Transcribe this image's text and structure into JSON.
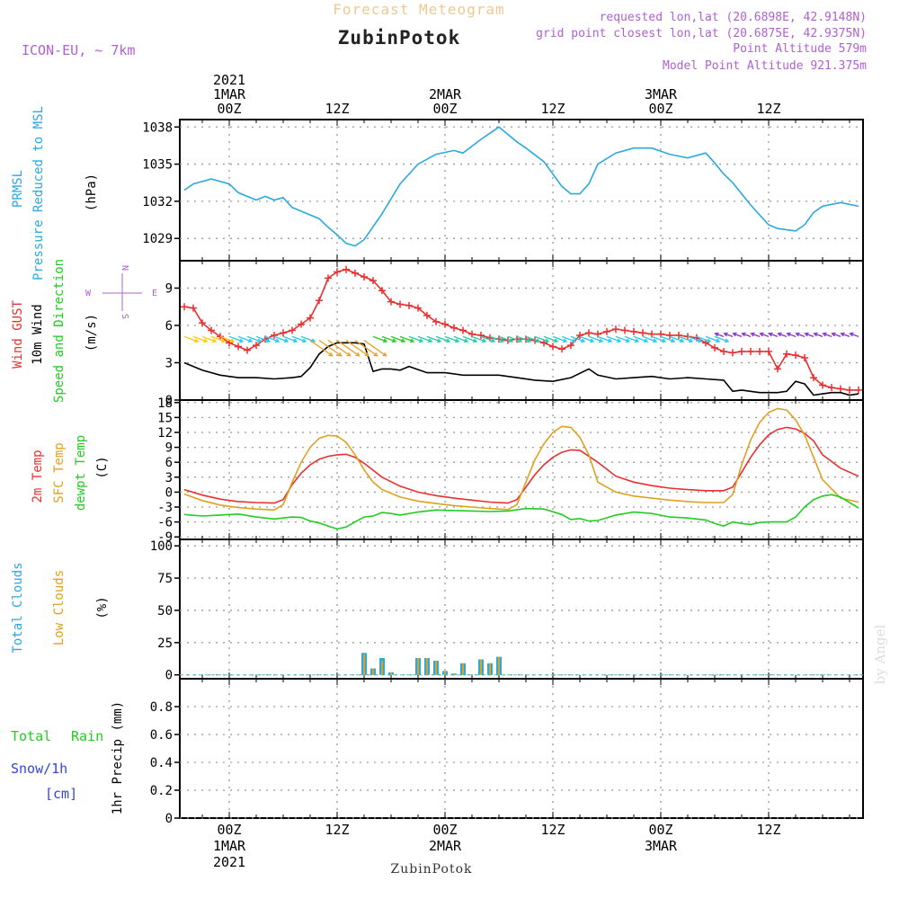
{
  "header": {
    "title": "Forecast Meteogram",
    "station": "ZubinPotok",
    "model": "ICON-EU, ~ 7km",
    "requested": "requested lon,lat (20.6898E, 42.9148N)",
    "closest": "grid point closest lon,lat (20.6875E, 42.9375N)",
    "altitude": "Point Altitude 579m",
    "model_altitude": "Model Point Altitude 921.375m",
    "footer_station": "ZubinPotok",
    "credit": "by Angel"
  },
  "time_axis": {
    "top_labels": [
      {
        "h": 0,
        "lines": [
          "2021",
          "1MAR",
          "00Z"
        ]
      },
      {
        "h": 12,
        "lines": [
          "12Z"
        ]
      },
      {
        "h": 24,
        "lines": [
          "2MAR",
          "00Z"
        ]
      },
      {
        "h": 36,
        "lines": [
          "12Z"
        ]
      },
      {
        "h": 48,
        "lines": [
          "3MAR",
          "00Z"
        ]
      },
      {
        "h": 60,
        "lines": [
          "12Z"
        ]
      }
    ],
    "bottom_labels": [
      {
        "h": 0,
        "lines": [
          "00Z",
          "1MAR",
          "2021"
        ]
      },
      {
        "h": 12,
        "lines": [
          "12Z"
        ]
      },
      {
        "h": 24,
        "lines": [
          "00Z",
          "2MAR"
        ]
      },
      {
        "h": 36,
        "lines": [
          "12Z"
        ]
      },
      {
        "h": 48,
        "lines": [
          "00Z",
          "3MAR"
        ]
      },
      {
        "h": 60,
        "lines": [
          "12Z"
        ]
      }
    ],
    "range_hours": [
      -5.5,
      70.5
    ]
  },
  "chart_data": [
    {
      "type": "line",
      "name": "pressure",
      "labels": [
        "PRMSL",
        "Pressure Reduced to MSL",
        "(hPa)"
      ],
      "ylim": [
        1027.2,
        1038.6
      ],
      "yticks": [
        1029,
        1032,
        1035,
        1038
      ],
      "series": [
        {
          "name": "PRMSL",
          "color": "#2aa8e0",
          "x": [
            -5,
            -4,
            -2,
            0,
            1,
            3,
            4,
            5,
            6,
            7,
            8,
            10,
            11,
            12,
            13,
            14,
            15,
            17,
            19,
            21,
            23,
            25,
            26,
            28,
            30,
            32,
            33,
            35,
            37,
            38,
            39,
            40,
            41,
            43,
            45,
            47,
            49,
            51,
            53,
            54,
            55,
            56,
            58,
            60,
            61,
            63,
            64,
            65,
            66,
            68,
            70
          ],
          "y": [
            1032.9,
            1033.4,
            1033.8,
            1033.4,
            1032.7,
            1032.1,
            1032.4,
            1032.1,
            1032.3,
            1031.5,
            1031.2,
            1030.6,
            1029.9,
            1029.3,
            1028.6,
            1028.4,
            1028.9,
            1031.0,
            1033.4,
            1035.0,
            1035.8,
            1036.1,
            1035.9,
            1037.0,
            1038.0,
            1036.8,
            1036.3,
            1035.2,
            1033.2,
            1032.6,
            1032.6,
            1033.4,
            1035.0,
            1035.9,
            1036.3,
            1036.3,
            1035.8,
            1035.5,
            1035.9,
            1035.1,
            1034.2,
            1033.5,
            1031.7,
            1030.1,
            1029.8,
            1029.6,
            1030.1,
            1031.1,
            1031.6,
            1031.9,
            1031.6
          ]
        }
      ]
    },
    {
      "type": "line",
      "name": "wind",
      "labels": [
        "Wind GUST",
        "10m Wind",
        "Speed and Direction",
        "(m/s)"
      ],
      "compass": {
        "n": "N",
        "e": "E",
        "s": "S",
        "w": "W"
      },
      "ylim": [
        0,
        11.2
      ],
      "yticks": [
        0,
        3,
        6,
        9
      ],
      "series": [
        {
          "name": "Wind GUST",
          "color": "#e83030",
          "marker": "+",
          "x": [
            -5,
            -4,
            -3,
            -2,
            -1,
            0,
            1,
            2,
            3,
            4,
            5,
            6,
            7,
            8,
            9,
            10,
            11,
            12,
            13,
            14,
            15,
            16,
            17,
            18,
            19,
            20,
            21,
            22,
            23,
            24,
            25,
            26,
            27,
            28,
            29,
            30,
            31,
            32,
            33,
            34,
            35,
            36,
            37,
            38,
            39,
            40,
            41,
            42,
            43,
            44,
            45,
            46,
            47,
            48,
            49,
            50,
            51,
            52,
            53,
            54,
            55,
            56,
            57,
            58,
            59,
            60,
            61,
            62,
            63,
            64,
            65,
            66,
            67,
            68,
            69,
            70
          ],
          "y": [
            7.5,
            7.4,
            6.2,
            5.6,
            5.1,
            4.6,
            4.3,
            4.0,
            4.4,
            4.9,
            5.2,
            5.4,
            5.6,
            6.1,
            6.6,
            8.0,
            9.8,
            10.3,
            10.5,
            10.2,
            9.9,
            9.6,
            8.8,
            7.9,
            7.7,
            7.6,
            7.4,
            6.8,
            6.3,
            6.1,
            5.8,
            5.6,
            5.3,
            5.2,
            5.0,
            4.9,
            4.8,
            4.9,
            4.9,
            4.8,
            4.6,
            4.3,
            4.1,
            4.4,
            5.2,
            5.4,
            5.3,
            5.5,
            5.7,
            5.6,
            5.5,
            5.4,
            5.3,
            5.3,
            5.2,
            5.2,
            5.1,
            5.0,
            4.6,
            4.2,
            3.9,
            3.8,
            3.9,
            3.9,
            3.9,
            3.9,
            2.5,
            3.7,
            3.6,
            3.4,
            1.8,
            1.2,
            1.0,
            0.9,
            0.8,
            0.8
          ]
        },
        {
          "name": "10m Wind",
          "color": "#000000",
          "x": [
            -5,
            -3,
            -1,
            1,
            3,
            5,
            7,
            8,
            9,
            10,
            11,
            12,
            13,
            14,
            15,
            16,
            17,
            18,
            19,
            20,
            22,
            24,
            26,
            28,
            30,
            32,
            34,
            36,
            38,
            40,
            41,
            43,
            45,
            47,
            49,
            51,
            53,
            55,
            56,
            57,
            58,
            59,
            60,
            61,
            62,
            63,
            64,
            65,
            66,
            67,
            68,
            69,
            70
          ],
          "y": [
            3.0,
            2.4,
            2.0,
            1.8,
            1.8,
            1.7,
            1.8,
            1.9,
            2.6,
            3.7,
            4.3,
            4.6,
            4.6,
            4.6,
            4.5,
            2.3,
            2.5,
            2.5,
            2.4,
            2.7,
            2.2,
            2.2,
            2.0,
            2.0,
            2.0,
            1.8,
            1.6,
            1.5,
            1.8,
            2.5,
            2.0,
            1.7,
            1.8,
            1.9,
            1.7,
            1.8,
            1.7,
            1.6,
            0.7,
            0.8,
            0.7,
            0.6,
            0.6,
            0.6,
            0.7,
            1.5,
            1.3,
            0.4,
            0.5,
            0.6,
            0.6,
            0.4,
            0.5
          ]
        }
      ]
    },
    {
      "type": "line",
      "name": "temperature",
      "labels": [
        "2m Temp",
        "SFC Temp",
        "dewpt Temp",
        "(C)"
      ],
      "ylim": [
        -9.5,
        18.5
      ],
      "yticks": [
        -9,
        -6,
        -3,
        0,
        3,
        6,
        9,
        12,
        15,
        18
      ],
      "series": [
        {
          "name": "2m Temp",
          "color": "#e83030",
          "x": [
            -5,
            -3,
            -1,
            1,
            3,
            5,
            6,
            7,
            8,
            9,
            10,
            11,
            12,
            13,
            14,
            15,
            17,
            19,
            21,
            23,
            25,
            27,
            29,
            31,
            32,
            33,
            34,
            35,
            36,
            37,
            38,
            39,
            41,
            43,
            45,
            47,
            49,
            51,
            53,
            55,
            56,
            57,
            58,
            59,
            60,
            61,
            62,
            63,
            64,
            65,
            66,
            68,
            70
          ],
          "y": [
            0.5,
            -0.6,
            -1.4,
            -1.9,
            -2.1,
            -2.2,
            -1.5,
            1.5,
            3.8,
            5.5,
            6.6,
            7.2,
            7.5,
            7.6,
            7.0,
            5.8,
            3.0,
            1.2,
            0.0,
            -0.7,
            -1.2,
            -1.6,
            -2.0,
            -2.2,
            -1.5,
            1.0,
            3.5,
            5.5,
            7.0,
            8.0,
            8.5,
            8.4,
            6.0,
            3.2,
            2.0,
            1.3,
            0.8,
            0.5,
            0.3,
            0.3,
            1.0,
            4.0,
            7.0,
            9.5,
            11.5,
            12.6,
            13.0,
            12.7,
            11.8,
            10.3,
            7.5,
            4.8,
            3.2
          ]
        },
        {
          "name": "SFC Temp",
          "color": "#e0a020",
          "x": [
            -5,
            -3,
            -1,
            1,
            3,
            5,
            6,
            7,
            8,
            9,
            10,
            11,
            12,
            13,
            14,
            15,
            16,
            17,
            19,
            21,
            23,
            25,
            27,
            29,
            31,
            32,
            33,
            34,
            35,
            36,
            37,
            38,
            39,
            40,
            41,
            43,
            45,
            47,
            49,
            51,
            53,
            55,
            56,
            57,
            58,
            59,
            60,
            61,
            62,
            63,
            64,
            65,
            66,
            68,
            70
          ],
          "y": [
            -0.4,
            -1.7,
            -2.6,
            -3.1,
            -3.4,
            -3.6,
            -2.5,
            2.0,
            6.0,
            9.0,
            10.8,
            11.4,
            11.3,
            10.0,
            7.5,
            4.5,
            2.0,
            0.5,
            -1.0,
            -1.8,
            -2.3,
            -2.7,
            -3.0,
            -3.3,
            -3.5,
            -2.5,
            2.0,
            6.5,
            9.7,
            12.0,
            13.2,
            13.0,
            11.0,
            7.5,
            2.0,
            0.0,
            -0.8,
            -1.2,
            -1.6,
            -1.9,
            -2.1,
            -2.1,
            -0.5,
            5.5,
            10.5,
            14.0,
            16.0,
            16.8,
            16.5,
            14.5,
            11.5,
            7.0,
            2.5,
            -1.2,
            -2.0
          ]
        },
        {
          "name": "dewpt Temp",
          "color": "#22cc22",
          "x": [
            -5,
            -3,
            -1,
            1,
            3,
            5,
            7,
            8,
            9,
            10,
            11,
            12,
            13,
            14,
            15,
            16,
            17,
            18,
            19,
            21,
            23,
            25,
            27,
            29,
            31,
            33,
            35,
            37,
            38,
            39,
            40,
            41,
            43,
            45,
            47,
            49,
            51,
            53,
            54,
            55,
            56,
            57,
            58,
            59,
            60,
            61,
            62,
            63,
            64,
            65,
            66,
            67,
            68,
            70
          ],
          "y": [
            -4.5,
            -4.8,
            -4.6,
            -4.4,
            -5.0,
            -5.4,
            -5.0,
            -5.1,
            -5.8,
            -6.2,
            -6.8,
            -7.4,
            -7.0,
            -6.0,
            -5.0,
            -4.8,
            -4.1,
            -4.3,
            -4.6,
            -4.0,
            -3.6,
            -3.7,
            -3.8,
            -3.9,
            -3.8,
            -3.3,
            -3.4,
            -4.5,
            -5.5,
            -5.3,
            -5.8,
            -5.7,
            -4.6,
            -4.0,
            -4.3,
            -5.0,
            -5.2,
            -5.6,
            -6.3,
            -6.8,
            -6.0,
            -6.3,
            -6.5,
            -6.1,
            -6.0,
            -6.0,
            -6.0,
            -5.0,
            -3.0,
            -1.5,
            -0.8,
            -0.5,
            -1.0,
            -3.2
          ]
        }
      ]
    },
    {
      "type": "bar",
      "name": "clouds",
      "labels": [
        "Total Clouds",
        "Low Clouds",
        "(%)"
      ],
      "ylim": [
        -3,
        105
      ],
      "yticks": [
        0,
        25,
        50,
        75,
        100
      ],
      "series": [
        {
          "name": "Total Clouds",
          "color": "#2aa8e0",
          "x": [
            15,
            16,
            17,
            18,
            21,
            22,
            23,
            24,
            25,
            26,
            28,
            29,
            30,
            31,
            32
          ],
          "y": [
            17,
            5,
            13,
            2,
            13,
            13,
            11,
            3,
            1,
            9,
            12,
            9,
            14,
            0,
            0
          ]
        },
        {
          "name": "Low Clouds",
          "color": "#e0a020",
          "x": [
            15,
            16,
            17,
            18,
            21,
            22,
            23,
            24,
            25,
            26,
            28,
            29,
            30,
            31,
            32
          ],
          "y": [
            16,
            5,
            11,
            2,
            13,
            13,
            11,
            3,
            1,
            9,
            12,
            9,
            14,
            0,
            0
          ]
        }
      ]
    },
    {
      "type": "bar",
      "name": "precip",
      "labels": [
        "Total",
        "Rain",
        "Snow/1h",
        "[cm]",
        "1hr Precip (mm)"
      ],
      "ylim": [
        0,
        1.0
      ],
      "yticks": [
        0,
        0.2,
        0.4,
        0.6,
        0.8
      ],
      "series": []
    }
  ]
}
